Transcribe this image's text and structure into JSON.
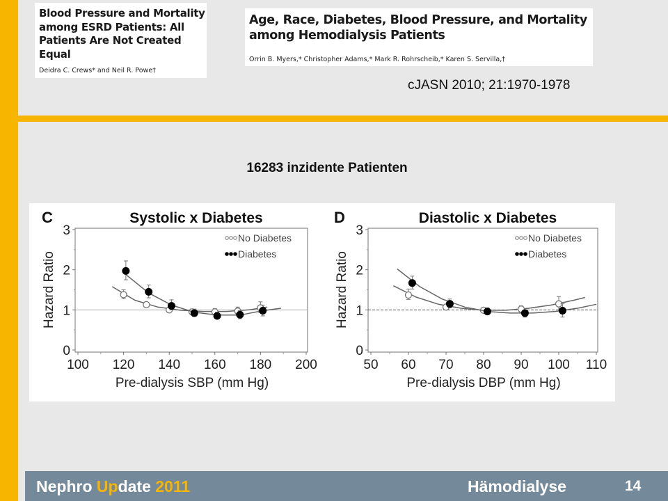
{
  "papers": [
    {
      "title_lines": [
        "Blood Pressure and Mortality",
        "among ESRD Patients: All",
        "Patients Are Not Created",
        "Equal"
      ],
      "authors": "Deidra C. Crews* and Neil R. Powe†"
    },
    {
      "title_lines": [
        "Age, Race, Diabetes, Blood Pressure, and Mortality",
        "among Hemodialysis Patients"
      ],
      "authors": "Orrin B. Myers,* Christopher Adams,* Mark R. Rohrscheib,* Karen S. Servilla,†"
    }
  ],
  "citation": "cJASN 2010; 21:1970-1978",
  "subtitle": "16283 inzidente Patienten",
  "footer": {
    "brand_part1": "Nephro ",
    "brand_part2": "Up",
    "brand_part3": "date ",
    "brand_year": "2011",
    "section": "Hämodialyse",
    "page_number": "14"
  },
  "colors": {
    "accent": "#f7b500",
    "footer_bg": "#74899a",
    "background": "#e8e8e8"
  },
  "chart_data": [
    {
      "panel": "C",
      "type": "line",
      "title": "Systolic x Diabetes",
      "xlabel": "Pre-dialysis SBP (mm Hg)",
      "ylabel": "Hazard Ratio",
      "xlim": [
        100,
        200
      ],
      "ylim": [
        0,
        3
      ],
      "xticks": [
        100,
        120,
        140,
        160,
        180,
        200
      ],
      "yticks": [
        0,
        1,
        2,
        3
      ],
      "reference_line": {
        "y": 1,
        "style": "solid"
      },
      "legend": {
        "position": "top-right",
        "entries": [
          "No Diabetes",
          "Diabetes"
        ]
      },
      "series": [
        {
          "name": "No Diabetes",
          "marker": "open-circle",
          "x": [
            120,
            130,
            140,
            150,
            160,
            170,
            180
          ],
          "y": [
            1.38,
            1.13,
            1.0,
            0.95,
            0.95,
            0.97,
            1.05
          ],
          "ci_low": [
            1.28,
            1.09,
            0.97,
            0.89,
            0.88,
            0.89,
            0.93
          ],
          "ci_high": [
            1.5,
            1.17,
            1.03,
            1.02,
            1.03,
            1.07,
            1.2
          ],
          "fit_x": [
            115,
            125,
            135,
            145,
            155,
            165,
            175,
            183
          ],
          "fit_y": [
            1.58,
            1.24,
            1.07,
            0.99,
            0.96,
            0.96,
            1.0,
            1.07
          ]
        },
        {
          "name": "Diabetes",
          "marker": "filled-circle",
          "x": [
            121,
            131,
            141,
            151,
            161,
            171,
            181
          ],
          "y": [
            1.97,
            1.45,
            1.1,
            0.92,
            0.85,
            0.88,
            0.98
          ],
          "ci_low": [
            1.75,
            1.3,
            1.0,
            0.84,
            0.78,
            0.78,
            0.85
          ],
          "ci_high": [
            2.22,
            1.62,
            1.25,
            1.02,
            0.94,
            0.98,
            1.12
          ],
          "fit_x": [
            121,
            131,
            141,
            151,
            161,
            171,
            181,
            189
          ],
          "fit_y": [
            1.88,
            1.42,
            1.12,
            0.94,
            0.87,
            0.87,
            0.98,
            1.04
          ]
        }
      ]
    },
    {
      "panel": "D",
      "type": "line",
      "title": "Diastolic x Diabetes",
      "xlabel": "Pre-dialysis DBP (mm Hg)",
      "ylabel": "Hazard Ratio",
      "xlim": [
        50,
        110
      ],
      "ylim": [
        0,
        3
      ],
      "xticks": [
        50,
        60,
        70,
        80,
        90,
        100,
        110
      ],
      "yticks": [
        0,
        1,
        2,
        3
      ],
      "reference_line": {
        "y": 1,
        "style": "dashed"
      },
      "legend": {
        "position": "top-right",
        "entries": [
          "No Diabetes",
          "Diabetes"
        ]
      },
      "series": [
        {
          "name": "No Diabetes",
          "marker": "open-circle",
          "x": [
            60,
            70,
            80,
            90,
            100
          ],
          "y": [
            1.37,
            1.07,
            0.99,
            1.02,
            1.15
          ],
          "ci_low": [
            1.26,
            1.02,
            0.95,
            0.95,
            1.0
          ],
          "ci_high": [
            1.52,
            1.12,
            1.04,
            1.1,
            1.33
          ],
          "fit_x": [
            56,
            62,
            68,
            74,
            80,
            86,
            92,
            98,
            104,
            107
          ],
          "fit_y": [
            1.6,
            1.32,
            1.14,
            1.04,
            0.99,
            0.99,
            1.04,
            1.12,
            1.24,
            1.31
          ]
        },
        {
          "name": "Diabetes",
          "marker": "filled-circle",
          "x": [
            61,
            71,
            81,
            91,
            101
          ],
          "y": [
            1.67,
            1.15,
            0.96,
            0.92,
            0.98
          ],
          "ci_low": [
            1.52,
            1.05,
            0.9,
            0.82,
            0.82
          ],
          "ci_high": [
            1.84,
            1.27,
            1.05,
            1.0,
            1.15
          ],
          "fit_x": [
            57,
            63,
            69,
            75,
            81,
            87,
            93,
            99,
            105,
            110
          ],
          "fit_y": [
            2.02,
            1.58,
            1.27,
            1.07,
            0.96,
            0.92,
            0.92,
            0.96,
            1.04,
            1.14
          ]
        }
      ]
    }
  ]
}
